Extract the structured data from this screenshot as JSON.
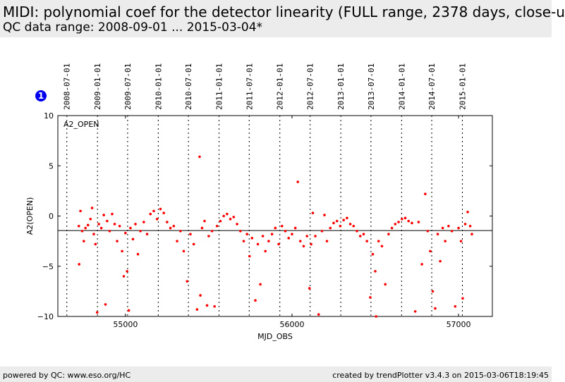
{
  "header": {
    "title": "MIDI: polynomial coef for the detector linearity (FULL range, 2378 days, close-u",
    "subtitle": "QC data range: 2008-09-01 ... 2015-03-04*"
  },
  "badge": "1",
  "footer": {
    "left": "powered by QC: www.eso.org/HC",
    "right": "created by trendPlotter v3.4.3 on 2015-03-06T18:19:45"
  },
  "chart_data": {
    "type": "scatter",
    "xlabel": "MJD_OBS",
    "ylabel": "A2(OPEN)",
    "panel_label": "A2_OPEN",
    "xlim": [
      54594,
      57203
    ],
    "ylim": [
      -10,
      10
    ],
    "xticks": [
      55000,
      56000,
      57000
    ],
    "yticks": [
      -10,
      -5,
      0,
      5,
      10
    ],
    "date_ticks": [
      {
        "label": "2008-07-01",
        "mjd": 54648
      },
      {
        "label": "2009-01-01",
        "mjd": 54832
      },
      {
        "label": "2009-07-01",
        "mjd": 55013
      },
      {
        "label": "2010-01-01",
        "mjd": 55197
      },
      {
        "label": "2010-07-01",
        "mjd": 55378
      },
      {
        "label": "2011-01-01",
        "mjd": 55562
      },
      {
        "label": "2011-07-01",
        "mjd": 55743
      },
      {
        "label": "2012-01-01",
        "mjd": 55927
      },
      {
        "label": "2012-07-01",
        "mjd": 56109
      },
      {
        "label": "2013-01-01",
        "mjd": 56293
      },
      {
        "label": "2013-07-01",
        "mjd": 56474
      },
      {
        "label": "2014-01-01",
        "mjd": 56658
      },
      {
        "label": "2014-07-01",
        "mjd": 56839
      },
      {
        "label": "2015-01-01",
        "mjd": 57023
      }
    ],
    "reference_line": -1.45,
    "color": "#ff0000",
    "points": [
      [
        54720,
        -1.0
      ],
      [
        54722,
        -4.8
      ],
      [
        54730,
        0.5
      ],
      [
        54740,
        -1.5
      ],
      [
        54750,
        -2.5
      ],
      [
        54760,
        -1.2
      ],
      [
        54775,
        -0.9
      ],
      [
        54790,
        -0.3
      ],
      [
        54800,
        0.8
      ],
      [
        54810,
        -1.8
      ],
      [
        54820,
        -2.8
      ],
      [
        54830,
        -9.6
      ],
      [
        54840,
        -0.8
      ],
      [
        54855,
        -1.2
      ],
      [
        54870,
        0.1
      ],
      [
        54880,
        -8.8
      ],
      [
        54890,
        -0.5
      ],
      [
        54905,
        -1.5
      ],
      [
        54920,
        0.2
      ],
      [
        54935,
        -0.8
      ],
      [
        54950,
        -2.5
      ],
      [
        54965,
        -1.0
      ],
      [
        54980,
        -3.5
      ],
      [
        54990,
        -6.0
      ],
      [
        55000,
        -1.7
      ],
      [
        55010,
        -5.5
      ],
      [
        55020,
        -9.4
      ],
      [
        55030,
        -1.2
      ],
      [
        55045,
        -2.3
      ],
      [
        55060,
        -0.8
      ],
      [
        55075,
        -3.8
      ],
      [
        55090,
        -1.5
      ],
      [
        55110,
        -0.6
      ],
      [
        55130,
        -1.8
      ],
      [
        55150,
        0.2
      ],
      [
        55170,
        0.5
      ],
      [
        55190,
        -0.3
      ],
      [
        55210,
        0.7
      ],
      [
        55230,
        0.3
      ],
      [
        55250,
        -0.6
      ],
      [
        55270,
        -1.2
      ],
      [
        55290,
        -1.0
      ],
      [
        55310,
        -2.5
      ],
      [
        55330,
        -1.5
      ],
      [
        55350,
        -3.5
      ],
      [
        55370,
        -6.5
      ],
      [
        55390,
        -1.8
      ],
      [
        55410,
        -2.8
      ],
      [
        55430,
        -9.3
      ],
      [
        55445,
        5.9
      ],
      [
        55450,
        -7.9
      ],
      [
        55460,
        -1.2
      ],
      [
        55475,
        -0.5
      ],
      [
        55490,
        -8.9
      ],
      [
        55500,
        -2.0
      ],
      [
        55520,
        -1.5
      ],
      [
        55535,
        -9.0
      ],
      [
        55550,
        -1.0
      ],
      [
        55570,
        -0.5
      ],
      [
        55590,
        0.0
      ],
      [
        55610,
        0.2
      ],
      [
        55630,
        -0.3
      ],
      [
        55650,
        -0.1
      ],
      [
        55670,
        -0.8
      ],
      [
        55690,
        -1.5
      ],
      [
        55710,
        -2.5
      ],
      [
        55730,
        -1.8
      ],
      [
        55745,
        -4.0
      ],
      [
        55760,
        -2.2
      ],
      [
        55780,
        -8.4
      ],
      [
        55795,
        -2.8
      ],
      [
        55810,
        -6.8
      ],
      [
        55825,
        -2.0
      ],
      [
        55840,
        -3.5
      ],
      [
        55860,
        -2.5
      ],
      [
        55880,
        -1.8
      ],
      [
        55900,
        -1.2
      ],
      [
        55920,
        -2.8
      ],
      [
        55940,
        -1.0
      ],
      [
        55960,
        -1.5
      ],
      [
        55980,
        -2.2
      ],
      [
        56000,
        -1.8
      ],
      [
        56020,
        -1.2
      ],
      [
        56035,
        3.4
      ],
      [
        56050,
        -2.5
      ],
      [
        56070,
        -3.0
      ],
      [
        56090,
        -2.0
      ],
      [
        56105,
        -7.2
      ],
      [
        56115,
        -2.8
      ],
      [
        56125,
        0.3
      ],
      [
        56140,
        -2.0
      ],
      [
        56160,
        -9.8
      ],
      [
        56180,
        -1.5
      ],
      [
        56195,
        0.1
      ],
      [
        56210,
        -2.5
      ],
      [
        56230,
        -1.2
      ],
      [
        56250,
        -0.7
      ],
      [
        56270,
        -0.5
      ],
      [
        56290,
        -1.0
      ],
      [
        56310,
        -0.4
      ],
      [
        56330,
        -0.2
      ],
      [
        56350,
        -0.8
      ],
      [
        56370,
        -1.0
      ],
      [
        56390,
        -1.5
      ],
      [
        56410,
        -2.0
      ],
      [
        56430,
        -1.8
      ],
      [
        56450,
        -2.5
      ],
      [
        56470,
        -8.1
      ],
      [
        56485,
        -3.8
      ],
      [
        56500,
        -5.5
      ],
      [
        56505,
        -10.0
      ],
      [
        56520,
        -2.5
      ],
      [
        56540,
        -3.0
      ],
      [
        56560,
        -6.8
      ],
      [
        56580,
        -1.8
      ],
      [
        56600,
        -1.2
      ],
      [
        56620,
        -0.8
      ],
      [
        56640,
        -0.6
      ],
      [
        56660,
        -0.3
      ],
      [
        56680,
        -0.2
      ],
      [
        56700,
        -0.5
      ],
      [
        56720,
        -0.7
      ],
      [
        56740,
        -9.5
      ],
      [
        56760,
        -0.6
      ],
      [
        56780,
        -4.8
      ],
      [
        56800,
        2.2
      ],
      [
        56815,
        -1.5
      ],
      [
        56830,
        -3.5
      ],
      [
        56845,
        -7.5
      ],
      [
        56860,
        -9.2
      ],
      [
        56875,
        -1.8
      ],
      [
        56890,
        -4.5
      ],
      [
        56905,
        -1.2
      ],
      [
        56920,
        -2.5
      ],
      [
        56940,
        -1.0
      ],
      [
        56960,
        -1.5
      ],
      [
        56980,
        -9.0
      ],
      [
        57000,
        -1.2
      ],
      [
        57015,
        -2.5
      ],
      [
        57025,
        -8.2
      ],
      [
        57040,
        -0.8
      ],
      [
        57055,
        0.4
      ],
      [
        57070,
        -1.0
      ],
      [
        57080,
        -1.8
      ]
    ]
  }
}
